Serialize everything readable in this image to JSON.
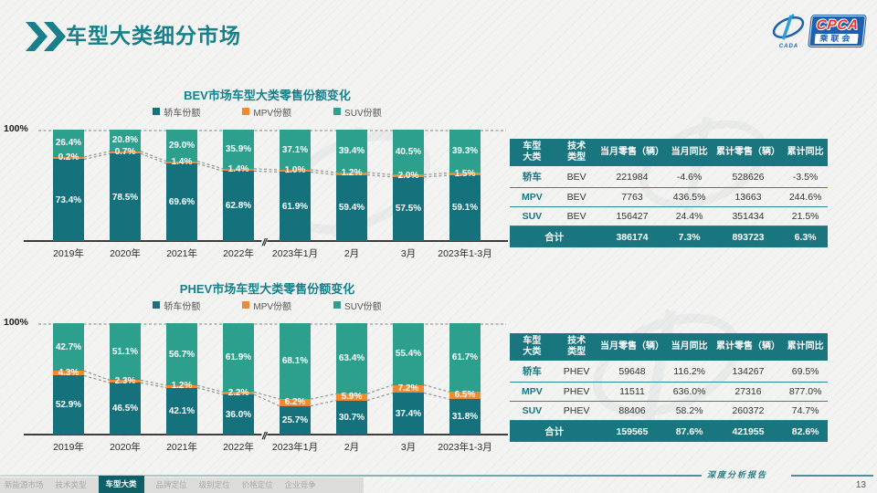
{
  "slide": {
    "title": "车型大类细分市场",
    "report_label": "深度分析报告",
    "page_number": "13"
  },
  "logo": {
    "cpca": "CPCA",
    "cn": "乘联会",
    "cada": "CADA"
  },
  "colors": {
    "accent_teal": "#17808b",
    "sedan": "#15727d",
    "mpv": "#ee8a31",
    "suv": "#2ca08d",
    "table_header": "#19757e"
  },
  "chart_data": [
    {
      "type": "bar",
      "stacked": true,
      "title": "BEV市场车型大类零售份额变化",
      "y_top_label": "100%",
      "ylim": [
        0,
        100
      ],
      "unit": "%",
      "axis_break_after_index": 3,
      "categories": [
        "2019年",
        "2020年",
        "2021年",
        "2022年",
        "2023年1月",
        "2月",
        "3月",
        "2023年1-3月"
      ],
      "series": [
        {
          "name": "轿车份额",
          "color": "#15727d",
          "values": [
            73.4,
            78.5,
            69.6,
            62.8,
            61.9,
            59.4,
            57.5,
            59.1
          ]
        },
        {
          "name": "MPV份额",
          "color": "#ee8a31",
          "values": [
            0.2,
            0.7,
            1.4,
            1.4,
            1.0,
            1.2,
            2.0,
            1.5
          ]
        },
        {
          "name": "SUV份额",
          "color": "#2ca08d",
          "values": [
            26.4,
            20.8,
            29.0,
            35.9,
            37.1,
            39.4,
            40.5,
            39.3
          ]
        }
      ]
    },
    {
      "type": "bar",
      "stacked": true,
      "title": "PHEV市场车型大类零售份额变化",
      "y_top_label": "100%",
      "ylim": [
        0,
        100
      ],
      "unit": "%",
      "axis_break_after_index": 3,
      "categories": [
        "2019年",
        "2020年",
        "2021年",
        "2022年",
        "2023年1月",
        "2月",
        "3月",
        "2023年1-3月"
      ],
      "series": [
        {
          "name": "轿车份额",
          "color": "#15727d",
          "values": [
            52.9,
            46.5,
            42.1,
            36.0,
            25.7,
            30.7,
            37.4,
            31.8
          ]
        },
        {
          "name": "MPV份额",
          "color": "#ee8a31",
          "values": [
            4.3,
            2.3,
            1.2,
            2.2,
            6.2,
            5.9,
            7.2,
            6.5
          ]
        },
        {
          "name": "SUV份额",
          "color": "#2ca08d",
          "values": [
            42.7,
            51.1,
            56.7,
            61.9,
            68.1,
            63.4,
            55.4,
            61.7
          ]
        }
      ]
    }
  ],
  "tables": [
    {
      "headers": [
        "车型\n大类",
        "技术\n类型",
        "当月零售（辆）",
        "当月同比",
        "累计零售（辆）",
        "累计同比"
      ],
      "rows": [
        [
          "轿车",
          "BEV",
          "221984",
          "-4.6%",
          "528626",
          "-3.5%"
        ],
        [
          "MPV",
          "BEV",
          "7763",
          "436.5%",
          "13663",
          "244.6%"
        ],
        [
          "SUV",
          "BEV",
          "156427",
          "24.4%",
          "351434",
          "21.5%"
        ]
      ],
      "total": [
        "合计",
        "386174",
        "7.3%",
        "893723",
        "6.3%"
      ]
    },
    {
      "headers": [
        "车型\n大类",
        "技术\n类型",
        "当月零售（辆）",
        "当月同比",
        "累计零售（辆）",
        "累计同比"
      ],
      "rows": [
        [
          "轿车",
          "PHEV",
          "59648",
          "116.2%",
          "134267",
          "69.5%"
        ],
        [
          "MPV",
          "PHEV",
          "11511",
          "636.0%",
          "27316",
          "877.0%"
        ],
        [
          "SUV",
          "PHEV",
          "88406",
          "58.2%",
          "260372",
          "74.7%"
        ]
      ],
      "total": [
        "合计",
        "159565",
        "87.6%",
        "421955",
        "82.6%"
      ]
    }
  ],
  "footer_nav": {
    "items": [
      "新能源市场",
      "技术类型",
      "车型大类",
      "品牌定位",
      "级别定位",
      "价格定位",
      "企业竞争"
    ],
    "active": "车型大类"
  }
}
